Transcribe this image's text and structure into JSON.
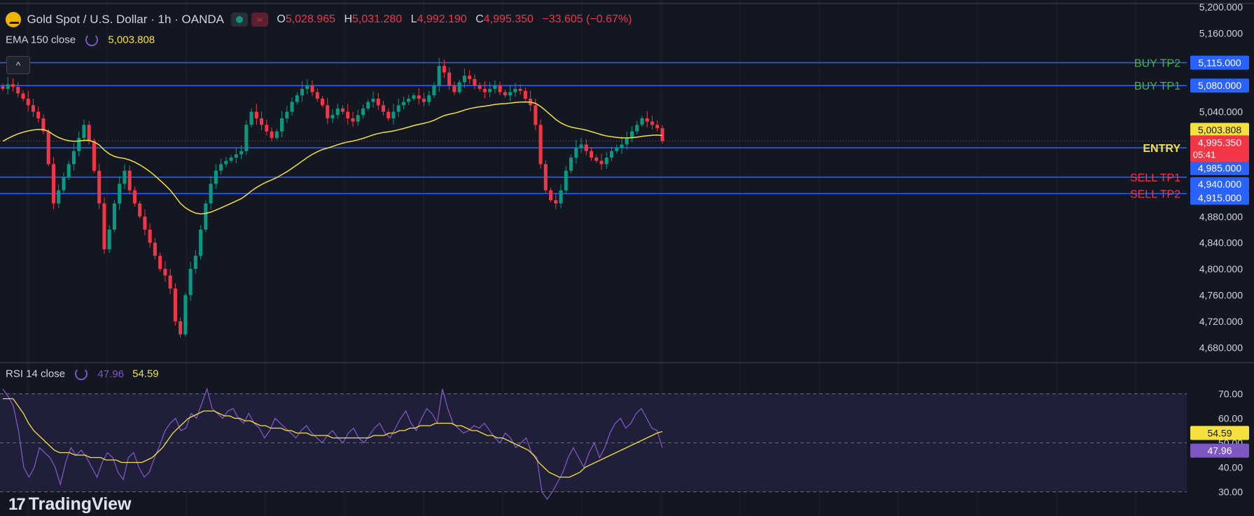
{
  "header": {
    "symbol_title": "Gold Spot / U.S. Dollar · 1h · OANDA",
    "symbol_icon": "gold-bars-icon",
    "badge_wave": "≈",
    "ohlc": {
      "o_label": "O",
      "o_value": "5,028.965",
      "h_label": "H",
      "h_value": "5,031.280",
      "l_label": "L",
      "l_value": "4,992.190",
      "c_label": "C",
      "c_value": "4,995.350",
      "change": "−33.605 (−0.67%)"
    },
    "ema_label": "EMA 150 close",
    "ema_value": "5,003.808",
    "collapse_label": "^"
  },
  "rsi_legend": {
    "label": "RSI 14 close",
    "rsi_value": "47.96",
    "ma_value": "54.59"
  },
  "brand": {
    "mark": "17",
    "name": "TradingView"
  },
  "colors": {
    "background": "#131722",
    "up": "#089981",
    "down": "#f23645",
    "level_line": "#2962ff",
    "ema": "#f5e13d",
    "rsi": "#7e57c2",
    "buy_text": "#4caf50",
    "sell_text": "#f23645",
    "entry_text": "#f5e13d"
  },
  "chart_data": [
    {
      "type": "candlestick",
      "ylim": [
        4660,
        5200
      ],
      "price_axis_ticks": [
        "4,680.000",
        "4,720.000",
        "4,760.000",
        "4,800.000",
        "4,840.000",
        "4,880.000",
        "5,040.000",
        "5,160.000",
        "5,200.000"
      ],
      "price_axis_tick_values": [
        4680,
        4720,
        4760,
        4800,
        4840,
        4880,
        5040,
        5160,
        5200
      ],
      "levels": [
        {
          "name": "BUY TP2",
          "value": 5115,
          "label": "5,115.000",
          "kind": "buy"
        },
        {
          "name": "BUY TP1",
          "value": 5080,
          "label": "5,080.000",
          "kind": "buy"
        },
        {
          "name": "ENTRY",
          "value": 4985,
          "label": "4,985.000",
          "kind": "entry"
        },
        {
          "name": "SELL TP1",
          "value": 4940,
          "label": "4,940.000",
          "kind": "sell"
        },
        {
          "name": "SELL TP2",
          "value": 4915,
          "label": "4,915.000",
          "kind": "sell"
        }
      ],
      "ema_value_label": "5,003.808",
      "ema_value": 5003.808,
      "last_price_label": "4,995.350",
      "last_price": 4995.35,
      "countdown": "05:41",
      "close_series": [
        5075,
        5082,
        5078,
        5068,
        5060,
        5050,
        5040,
        5030,
        5010,
        4960,
        4900,
        4920,
        4940,
        4960,
        4980,
        5000,
        5020,
        4995,
        4950,
        4900,
        4830,
        4860,
        4900,
        4930,
        4950,
        4920,
        4900,
        4880,
        4860,
        4840,
        4820,
        4800,
        4790,
        4770,
        4720,
        4700,
        4760,
        4800,
        4820,
        4860,
        4900,
        4930,
        4950,
        4960,
        4965,
        4970,
        4975,
        4980,
        5020,
        5040,
        5030,
        5020,
        5010,
        5000,
        5010,
        5030,
        5040,
        5055,
        5065,
        5075,
        5080,
        5070,
        5060,
        5050,
        5030,
        5035,
        5045,
        5040,
        5030,
        5025,
        5035,
        5045,
        5055,
        5060,
        5050,
        5040,
        5030,
        5040,
        5050,
        5055,
        5060,
        5065,
        5060,
        5055,
        5065,
        5080,
        5110,
        5100,
        5080,
        5070,
        5085,
        5095,
        5090,
        5080,
        5075,
        5070,
        5075,
        5080,
        5070,
        5065,
        5070,
        5075,
        5072,
        5060,
        5050,
        5020,
        4960,
        4920,
        4905,
        4900,
        4920,
        4950,
        4970,
        4985,
        4990,
        4980,
        4970,
        4965,
        4960,
        4970,
        4980,
        4985,
        4990,
        5000,
        5010,
        5020,
        5030,
        5025,
        5020,
        5015,
        4995
      ]
    },
    {
      "type": "line",
      "title": "RSI 14 close",
      "ylim": [
        25,
        75
      ],
      "rsi_axis_ticks": [
        "30.00",
        "40.00",
        "50.00",
        "60.00",
        "70.00"
      ],
      "rsi_axis_tick_values": [
        30,
        40,
        50,
        60,
        70
      ],
      "band": [
        30,
        70
      ],
      "rsi_value_label": "47.96",
      "rsi_value": 47.96,
      "ma_value_label": "54.59",
      "ma_value": 54.59,
      "rsi_series": [
        72,
        69,
        65,
        55,
        40,
        36,
        40,
        48,
        46,
        44,
        40,
        33,
        42,
        48,
        45,
        47,
        44,
        40,
        36,
        42,
        46,
        44,
        38,
        35,
        44,
        46,
        40,
        36,
        38,
        44,
        49,
        55,
        58,
        60,
        55,
        56,
        62,
        60,
        66,
        72,
        64,
        62,
        60,
        63,
        64,
        60,
        58,
        62,
        58,
        56,
        52,
        55,
        60,
        58,
        56,
        54,
        52,
        55,
        57,
        54,
        52,
        50,
        53,
        55,
        52,
        50,
        54,
        56,
        52,
        50,
        53,
        56,
        58,
        54,
        52,
        56,
        60,
        63,
        58,
        55,
        60,
        64,
        62,
        58,
        72,
        64,
        58,
        56,
        54,
        55,
        57,
        56,
        58,
        55,
        52,
        50,
        54,
        52,
        48,
        50,
        52,
        46,
        44,
        30,
        27,
        30,
        34,
        38,
        44,
        48,
        44,
        40,
        46,
        50,
        44,
        48,
        54,
        58,
        60,
        56,
        58,
        62,
        64,
        60,
        56,
        55,
        47.96
      ],
      "ma_series": [
        68,
        68,
        68,
        65,
        62,
        58,
        55,
        53,
        51,
        49,
        47,
        46,
        46,
        46,
        45,
        45,
        45,
        44,
        44,
        44,
        43,
        43,
        43,
        42,
        42,
        42,
        42,
        42,
        43,
        44,
        46,
        48,
        51,
        54,
        56,
        58,
        60,
        61,
        62,
        63,
        63,
        63,
        62,
        61,
        61,
        60,
        60,
        59,
        59,
        58,
        57,
        57,
        56,
        56,
        56,
        55,
        55,
        54,
        54,
        54,
        53,
        53,
        53,
        53,
        52,
        52,
        52,
        52,
        52,
        52,
        52,
        52,
        53,
        53,
        53,
        54,
        54,
        55,
        55,
        56,
        56,
        57,
        57,
        57,
        58,
        58,
        58,
        58,
        57,
        57,
        56,
        55,
        55,
        54,
        53,
        53,
        52,
        52,
        51,
        50,
        49,
        48,
        47,
        45,
        42,
        40,
        38,
        37,
        36,
        36,
        36,
        37,
        38,
        40,
        41,
        42,
        43,
        44,
        45,
        46,
        47,
        48,
        49,
        50,
        51,
        52,
        53,
        54,
        54.59
      ]
    }
  ]
}
